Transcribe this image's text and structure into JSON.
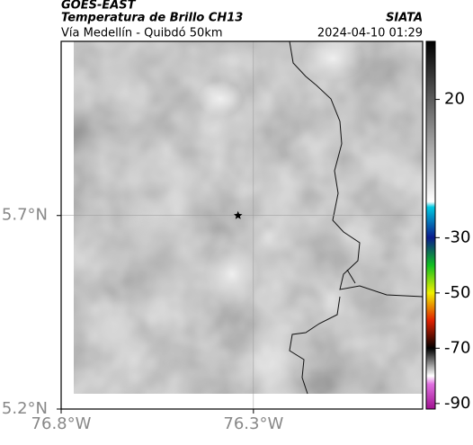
{
  "header": {
    "title": "GOES-EAST",
    "subtitle": "Temperatura de Brillo CH13",
    "source": "SIATA",
    "route": "Vía Medellín - Quibdó 50km",
    "datetime": "2024-04-10 01:29"
  },
  "map": {
    "xlim": [
      -76.8,
      -75.86
    ],
    "ylim": [
      5.2,
      6.15
    ],
    "xticks": [
      {
        "value": -76.8,
        "label": "76.8°W"
      },
      {
        "value": -76.3,
        "label": "76.3°W"
      }
    ],
    "yticks": [
      {
        "value": 5.2,
        "label": "5.2°N"
      },
      {
        "value": 5.7,
        "label": "5.7°N"
      }
    ],
    "marker": {
      "lon": -76.34,
      "lat": 5.7
    }
  },
  "colorbar": {
    "clim": [
      -92,
      41
    ],
    "ticks": [
      20,
      -30,
      -50,
      -70,
      -90
    ],
    "stops": [
      {
        "value": 41,
        "color": "#000000"
      },
      {
        "value": -17,
        "color": "#ffffff"
      },
      {
        "value": -19,
        "color": "#00c8e0"
      },
      {
        "value": -30,
        "color": "#0a1a8c"
      },
      {
        "value": -40,
        "color": "#10c020"
      },
      {
        "value": -50,
        "color": "#f0f000"
      },
      {
        "value": -60,
        "color": "#e02000"
      },
      {
        "value": -70,
        "color": "#000000"
      },
      {
        "value": -80,
        "color": "#ffffff"
      },
      {
        "value": -83,
        "color": "#e070e0"
      },
      {
        "value": -92,
        "color": "#a01090"
      }
    ]
  }
}
